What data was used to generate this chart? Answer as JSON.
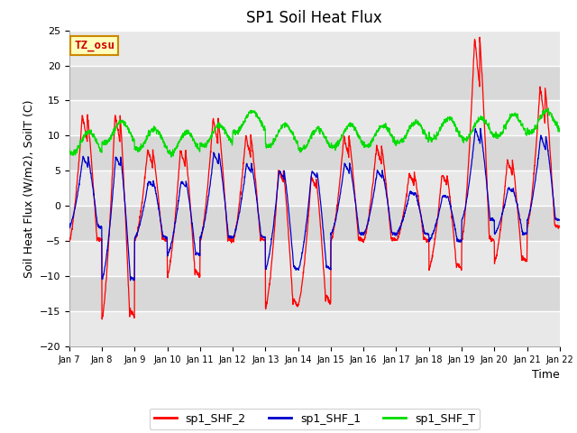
{
  "title": "SP1 Soil Heat Flux",
  "ylabel": "Soil Heat Flux (W/m2), SoilT (C)",
  "xlabel": "Time",
  "ylim": [
    -20,
    25
  ],
  "yticks": [
    -20,
    -15,
    -10,
    -5,
    0,
    5,
    10,
    15,
    20,
    25
  ],
  "x_labels": [
    "Jan 7",
    "Jan 8",
    "Jan 9",
    "Jan 10",
    "Jan 11",
    "Jan 12",
    "Jan 13",
    "Jan 14",
    "Jan 15",
    "Jan 16",
    "Jan 17",
    "Jan 18",
    "Jan 19",
    "Jan 20",
    "Jan 21",
    "Jan 22"
  ],
  "legend_labels": [
    "sp1_SHF_2",
    "sp1_SHF_1",
    "sp1_SHF_T"
  ],
  "line_colors": [
    "#ff0000",
    "#0000cc",
    "#00dd00"
  ],
  "annotation_text": "TZ_osu",
  "annotation_bg": "#ffffbb",
  "annotation_border": "#cc8800",
  "plot_bg_light": "#e8e8e8",
  "plot_bg_dark": "#d0d0d0",
  "grid_color": "#ffffff",
  "fig_bg": "#ffffff",
  "title_fontsize": 12,
  "label_fontsize": 9,
  "tick_fontsize": 8
}
